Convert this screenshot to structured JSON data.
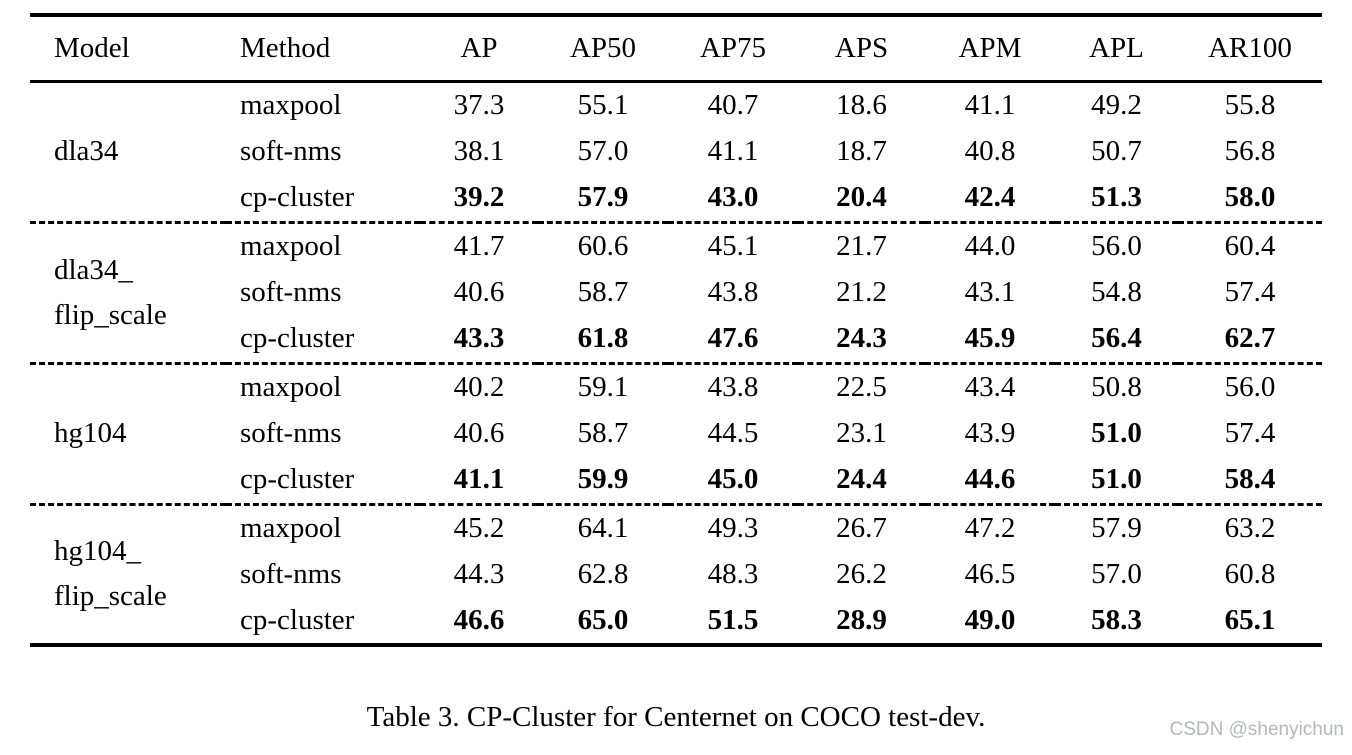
{
  "table": {
    "columns": [
      "Model",
      "Method",
      "AP",
      "AP50",
      "AP75",
      "APS",
      "APM",
      "APL",
      "AR100"
    ],
    "groups": [
      {
        "model_lines": [
          "dla34"
        ],
        "rows": [
          {
            "method": "maxpool",
            "values": [
              "37.3",
              "55.1",
              "40.7",
              "18.6",
              "41.1",
              "49.2",
              "55.8"
            ],
            "bold_values": []
          },
          {
            "method": "soft-nms",
            "values": [
              "38.1",
              "57.0",
              "41.1",
              "18.7",
              "40.8",
              "50.7",
              "56.8"
            ],
            "bold_values": []
          },
          {
            "method": "cp-cluster",
            "values": [
              "39.2",
              "57.9",
              "43.0",
              "20.4",
              "42.4",
              "51.3",
              "58.0"
            ],
            "bold_values": [
              0,
              1,
              2,
              3,
              4,
              5,
              6
            ]
          }
        ]
      },
      {
        "model_lines": [
          "dla34_",
          "flip_scale"
        ],
        "rows": [
          {
            "method": "maxpool",
            "values": [
              "41.7",
              "60.6",
              "45.1",
              "21.7",
              "44.0",
              "56.0",
              "60.4"
            ],
            "bold_values": []
          },
          {
            "method": "soft-nms",
            "values": [
              "40.6",
              "58.7",
              "43.8",
              "21.2",
              "43.1",
              "54.8",
              "57.4"
            ],
            "bold_values": []
          },
          {
            "method": "cp-cluster",
            "values": [
              "43.3",
              "61.8",
              "47.6",
              "24.3",
              "45.9",
              "56.4",
              "62.7"
            ],
            "bold_values": [
              0,
              1,
              2,
              3,
              4,
              5,
              6
            ]
          }
        ]
      },
      {
        "model_lines": [
          "hg104"
        ],
        "rows": [
          {
            "method": "maxpool",
            "values": [
              "40.2",
              "59.1",
              "43.8",
              "22.5",
              "43.4",
              "50.8",
              "56.0"
            ],
            "bold_values": []
          },
          {
            "method": "soft-nms",
            "values": [
              "40.6",
              "58.7",
              "44.5",
              "23.1",
              "43.9",
              "51.0",
              "57.4"
            ],
            "bold_values": [
              5
            ]
          },
          {
            "method": "cp-cluster",
            "values": [
              "41.1",
              "59.9",
              "45.0",
              "24.4",
              "44.6",
              "51.0",
              "58.4"
            ],
            "bold_values": [
              0,
              1,
              2,
              3,
              4,
              5,
              6
            ]
          }
        ]
      },
      {
        "model_lines": [
          "hg104_",
          "flip_scale"
        ],
        "rows": [
          {
            "method": "maxpool",
            "values": [
              "45.2",
              "64.1",
              "49.3",
              "26.7",
              "47.2",
              "57.9",
              "63.2"
            ],
            "bold_values": []
          },
          {
            "method": "soft-nms",
            "values": [
              "44.3",
              "62.8",
              "48.3",
              "26.2",
              "46.5",
              "57.0",
              "60.8"
            ],
            "bold_values": []
          },
          {
            "method": "cp-cluster",
            "values": [
              "46.6",
              "65.0",
              "51.5",
              "28.9",
              "49.0",
              "58.3",
              "65.1"
            ],
            "bold_values": [
              0,
              1,
              2,
              3,
              4,
              5,
              6
            ]
          }
        ]
      }
    ]
  },
  "caption": {
    "text": "Table 3. CP-Cluster for Centernet on COCO test-dev."
  },
  "watermark": {
    "text": "CSDN @shenyichun"
  }
}
